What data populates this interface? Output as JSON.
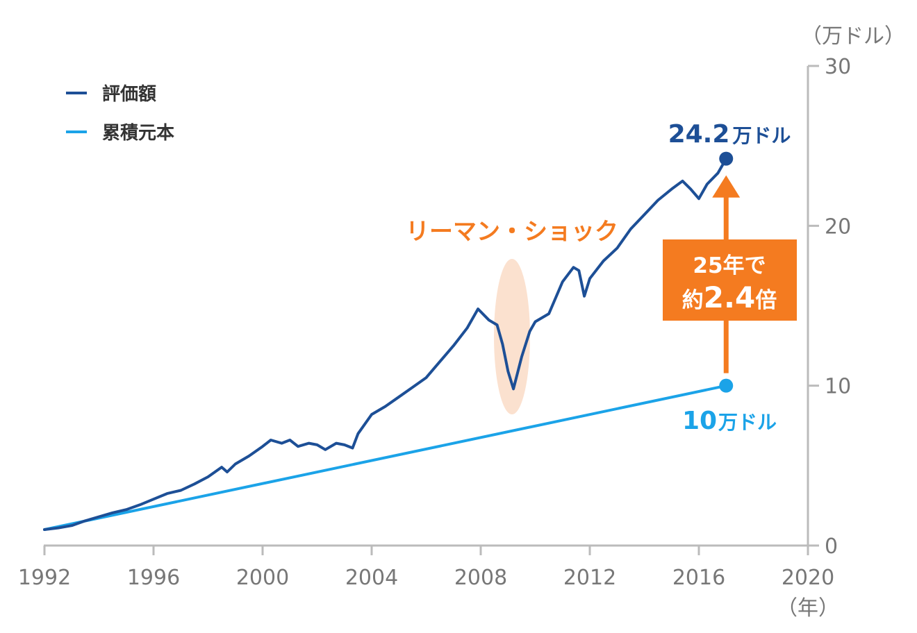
{
  "chart_data": {
    "type": "line",
    "y_unit": "（万ドル）",
    "x_unit": "（年）",
    "xlim": [
      1992,
      2020
    ],
    "ylim": [
      0,
      30
    ],
    "x_ticks": [
      "1992",
      "1996",
      "2000",
      "2004",
      "2008",
      "2012",
      "2016",
      "2020"
    ],
    "y_ticks": [
      "0",
      "10",
      "20",
      "30"
    ],
    "legend": {
      "position": "top-left"
    },
    "series": [
      {
        "name": "評価額",
        "color": "#1d4f96",
        "points": [
          [
            1992.0,
            1.0
          ],
          [
            1992.5,
            1.1
          ],
          [
            1993.0,
            1.25
          ],
          [
            1993.5,
            1.55
          ],
          [
            1994.0,
            1.8
          ],
          [
            1994.5,
            2.05
          ],
          [
            1995.0,
            2.25
          ],
          [
            1995.5,
            2.55
          ],
          [
            1996.0,
            2.9
          ],
          [
            1996.5,
            3.25
          ],
          [
            1997.0,
            3.45
          ],
          [
            1997.5,
            3.85
          ],
          [
            1998.0,
            4.3
          ],
          [
            1998.5,
            4.9
          ],
          [
            1998.7,
            4.6
          ],
          [
            1999.0,
            5.1
          ],
          [
            1999.5,
            5.6
          ],
          [
            2000.0,
            6.2
          ],
          [
            2000.3,
            6.6
          ],
          [
            2000.7,
            6.4
          ],
          [
            2001.0,
            6.6
          ],
          [
            2001.3,
            6.2
          ],
          [
            2001.7,
            6.4
          ],
          [
            2002.0,
            6.3
          ],
          [
            2002.3,
            6.0
          ],
          [
            2002.7,
            6.4
          ],
          [
            2003.0,
            6.3
          ],
          [
            2003.3,
            6.1
          ],
          [
            2003.5,
            7.0
          ],
          [
            2004.0,
            8.2
          ],
          [
            2004.5,
            8.7
          ],
          [
            2005.0,
            9.3
          ],
          [
            2005.5,
            9.9
          ],
          [
            2006.0,
            10.5
          ],
          [
            2006.5,
            11.5
          ],
          [
            2007.0,
            12.5
          ],
          [
            2007.5,
            13.6
          ],
          [
            2007.9,
            14.8
          ],
          [
            2008.3,
            14.1
          ],
          [
            2008.6,
            13.8
          ],
          [
            2008.8,
            12.6
          ],
          [
            2009.0,
            10.9
          ],
          [
            2009.2,
            9.8
          ],
          [
            2009.5,
            11.8
          ],
          [
            2009.8,
            13.4
          ],
          [
            2010.0,
            14.0
          ],
          [
            2010.5,
            14.5
          ],
          [
            2011.0,
            16.5
          ],
          [
            2011.4,
            17.4
          ],
          [
            2011.6,
            17.2
          ],
          [
            2011.8,
            15.6
          ],
          [
            2012.0,
            16.7
          ],
          [
            2012.5,
            17.8
          ],
          [
            2013.0,
            18.6
          ],
          [
            2013.5,
            19.8
          ],
          [
            2014.0,
            20.7
          ],
          [
            2014.5,
            21.6
          ],
          [
            2015.0,
            22.3
          ],
          [
            2015.4,
            22.8
          ],
          [
            2015.7,
            22.3
          ],
          [
            2016.0,
            21.7
          ],
          [
            2016.3,
            22.6
          ],
          [
            2016.7,
            23.3
          ],
          [
            2017.0,
            24.2
          ]
        ]
      },
      {
        "name": "累積元本",
        "color": "#1ba3e8",
        "points": [
          [
            1992.0,
            1.0
          ],
          [
            2017.0,
            10.0
          ]
        ]
      }
    ],
    "end_labels": [
      {
        "series": "評価額",
        "number": "24.2",
        "unit": "万ドル",
        "x": 2017.0,
        "y": 24.2
      },
      {
        "series": "累積元本",
        "number": "10",
        "unit": "万ドル",
        "x": 2017.0,
        "y": 10.0
      }
    ],
    "annotations": {
      "event": {
        "label": "リーマン・ショック",
        "x": 2009.0,
        "y": 9.8,
        "color": "#f47b20",
        "highlight": "#fbe1cf"
      },
      "growth": {
        "line1": "25年で",
        "prefix": "約",
        "number": "2.4",
        "suffix": "倍",
        "color": "#f47b20"
      }
    }
  }
}
